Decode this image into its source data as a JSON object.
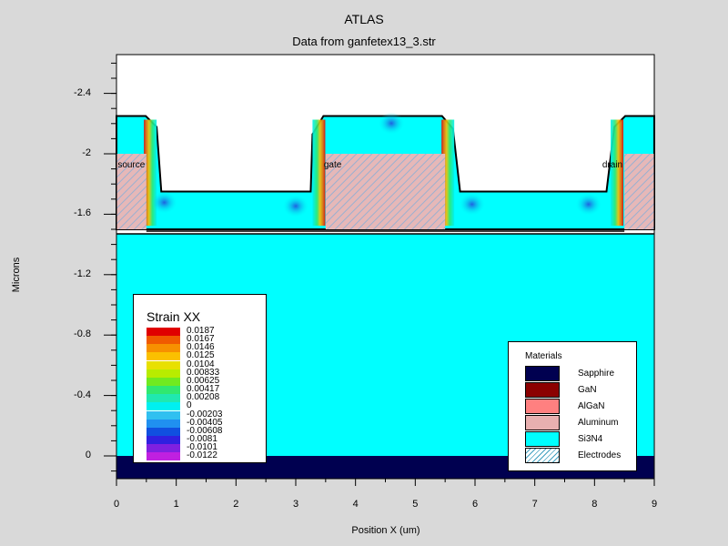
{
  "header": {
    "title": "ATLAS",
    "subtitle": "Data from ganfetex13_3.str"
  },
  "chart_data": {
    "type": "heatmap",
    "title": "ATLAS",
    "subtitle": "Data from ganfetex13_3.str",
    "xlabel": "Position X (um)",
    "ylabel": "Microns",
    "xlim": [
      0,
      9
    ],
    "ylim": [
      -2.7,
      0.15
    ],
    "y_inverted": true,
    "x_ticks": [
      "0",
      "1",
      "2",
      "3",
      "4",
      "5",
      "6",
      "7",
      "8",
      "9"
    ],
    "y_ticks": [
      {
        "value": -2.4,
        "label": "-2.4"
      },
      {
        "value": -2.0,
        "label": "-2"
      },
      {
        "value": -1.6,
        "label": "-1.6"
      },
      {
        "value": -1.2,
        "label": "-1.2"
      },
      {
        "value": -0.8,
        "label": "-0.8"
      },
      {
        "value": -0.4,
        "label": "-0.4"
      },
      {
        "value": 0.0,
        "label": "0"
      }
    ],
    "electrode_labels": [
      {
        "text": "source",
        "x": 0.02,
        "y": -1.92
      },
      {
        "text": "gate",
        "x": 3.47,
        "y": -1.92
      },
      {
        "text": "drain",
        "x": 8.13,
        "y": -1.92
      }
    ],
    "structure": {
      "sapphire_y": [
        0.0,
        0.15
      ],
      "gan_top": -1.47,
      "algan_top": -1.5,
      "si3n4_top": -2.25,
      "si3n4_recess_top": -1.75,
      "electrodes": [
        {
          "x": [
            0.0,
            0.5
          ],
          "y": [
            -1.5,
            -2.0
          ]
        },
        {
          "x": [
            3.5,
            5.5
          ],
          "y": [
            -1.5,
            -2.0
          ]
        },
        {
          "x": [
            8.5,
            9.0
          ],
          "y": [
            -1.5,
            -2.0
          ]
        }
      ],
      "nitride_openings": [
        {
          "x_top": [
            0.55,
            3.25
          ],
          "x_bottom": [
            0.75,
            3.25
          ]
        },
        {
          "x_top": [
            5.6,
            8.3
          ],
          "x_bottom": [
            5.75,
            8.2
          ]
        }
      ]
    },
    "legend": {
      "title": "Strain XX",
      "values": [
        "0.0187",
        "0.0167",
        "0.0146",
        "0.0125",
        "0.0104",
        "0.00833",
        "0.00625",
        "0.00417",
        "0.00208",
        "0",
        "-0.00203",
        "-0.00405",
        "-0.00608",
        "-0.0081",
        "-0.0101",
        "-0.0122"
      ],
      "colors": [
        "#e00000",
        "#f05a00",
        "#f79000",
        "#fbc000",
        "#e8e000",
        "#b8ec00",
        "#70ea20",
        "#30e870",
        "#20e8b0",
        "#00f0f0",
        "#30c0f0",
        "#2090f0",
        "#1050e0",
        "#3020e0",
        "#8020e0",
        "#c020e0"
      ]
    }
  },
  "materials": {
    "title": "Materials",
    "items": [
      {
        "name": "Sapphire",
        "color": "#000050"
      },
      {
        "name": "GaN",
        "color": "#8b0000"
      },
      {
        "name": "AlGaN",
        "color": "#ff8080"
      },
      {
        "name": "Aluminum",
        "color": "#e8b0b0"
      },
      {
        "name": "Si3N4",
        "color": "#00ffff"
      },
      {
        "name": "Electrodes",
        "color": "#ffffff",
        "pattern": "hatch"
      }
    ]
  },
  "colors": {
    "background": "#d9d9d9",
    "si3n4": "#00ffff",
    "sapphire": "#000050",
    "electrode_fill": "#d8b0b0"
  }
}
